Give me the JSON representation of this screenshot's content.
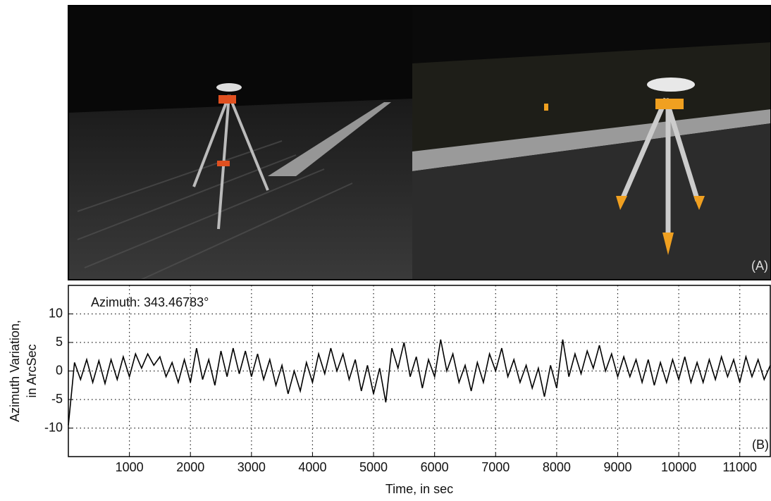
{
  "photo_label": "(A)",
  "chart_data": {
    "type": "line",
    "x_label": "Time, in sec",
    "y_label": [
      "Azimuth Variation,",
      "in ArcSec"
    ],
    "annotations": [
      "Azimuth: 343.46783°",
      "(B)"
    ],
    "color": "#000000",
    "grid": true,
    "xlim": [
      0,
      11500
    ],
    "ylim": [
      -15,
      15
    ],
    "xticks": [
      1000,
      2000,
      3000,
      4000,
      5000,
      6000,
      7000,
      8000,
      9000,
      10000,
      11000
    ],
    "yticks": [
      -10,
      -5,
      0,
      5,
      10
    ],
    "x": [
      0,
      100,
      200,
      300,
      400,
      500,
      600,
      700,
      800,
      900,
      1000,
      1100,
      1200,
      1300,
      1400,
      1500,
      1600,
      1700,
      1800,
      1900,
      2000,
      2100,
      2200,
      2300,
      2400,
      2500,
      2600,
      2700,
      2800,
      2900,
      3000,
      3100,
      3200,
      3300,
      3400,
      3500,
      3600,
      3700,
      3800,
      3900,
      4000,
      4100,
      4200,
      4300,
      4400,
      4500,
      4600,
      4700,
      4800,
      4900,
      5000,
      5100,
      5200,
      5300,
      5400,
      5500,
      5600,
      5700,
      5800,
      5900,
      6000,
      6100,
      6200,
      6300,
      6400,
      6500,
      6600,
      6700,
      6800,
      6900,
      7000,
      7100,
      7200,
      7300,
      7400,
      7500,
      7600,
      7700,
      7800,
      7900,
      8000,
      8100,
      8200,
      8300,
      8400,
      8500,
      8600,
      8700,
      8800,
      8900,
      9000,
      9100,
      9200,
      9300,
      9400,
      9500,
      9600,
      9700,
      9800,
      9900,
      10000,
      10100,
      10200,
      10300,
      10400,
      10500,
      10600,
      10700,
      10800,
      10900,
      11000,
      11100,
      11200,
      11300,
      11400,
      11500
    ],
    "values": [
      -9.5,
      1.5,
      -1.5,
      2,
      -2,
      1.8,
      -2.2,
      2,
      -1.5,
      2.5,
      -1,
      3,
      0.5,
      3,
      1,
      2.5,
      -1,
      1.5,
      -2,
      2,
      -2,
      4,
      -1.5,
      2,
      -2.5,
      3.5,
      -1,
      4,
      -0.5,
      3.5,
      -1,
      3,
      -1.5,
      2,
      -2.5,
      1,
      -4,
      0,
      -3.5,
      1.5,
      -2,
      3,
      -0.5,
      4,
      0,
      3,
      -1.5,
      2,
      -3.5,
      1,
      -4,
      0.5,
      -5.5,
      4,
      0.5,
      5,
      -1,
      2.5,
      -3,
      2,
      -1,
      5.5,
      0,
      3,
      -2,
      1,
      -3.5,
      1.5,
      -2,
      3,
      0,
      4,
      -1,
      2,
      -2,
      1,
      -3,
      0.5,
      -4.5,
      1,
      -3,
      5.5,
      -1,
      3,
      -0.5,
      3.5,
      0.5,
      4.5,
      0,
      3,
      -1,
      2.5,
      -1,
      2,
      -2,
      2,
      -2.5,
      1.5,
      -2,
      2,
      -1.5,
      2.5,
      -2,
      1.5,
      -2,
      2,
      -1.5,
      2.5,
      -1,
      2,
      -2,
      2.5,
      -1,
      2,
      -1.5,
      1
    ]
  }
}
